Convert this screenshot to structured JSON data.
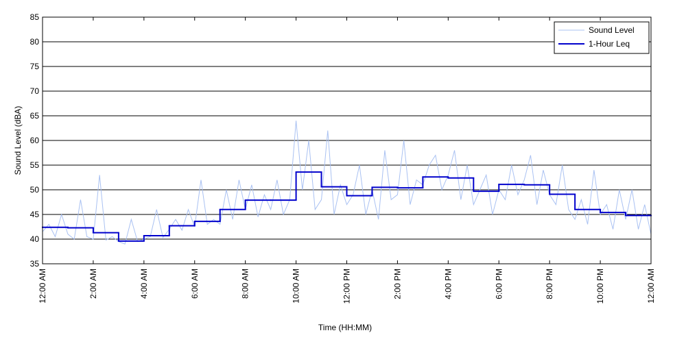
{
  "chart_data": {
    "type": "line",
    "xlabel": "Time (HH:MM)",
    "ylabel": "Sound Level (dBA)",
    "xlim": [
      0,
      24
    ],
    "ylim": [
      35,
      85
    ],
    "yticks": [
      35,
      40,
      45,
      50,
      55,
      60,
      65,
      70,
      75,
      80,
      85
    ],
    "xticks": [
      {
        "value": 0,
        "label": "12:00 AM"
      },
      {
        "value": 2,
        "label": "2:00 AM"
      },
      {
        "value": 4,
        "label": "4:00 AM"
      },
      {
        "value": 6,
        "label": "6:00 AM"
      },
      {
        "value": 8,
        "label": "8:00 AM"
      },
      {
        "value": 10,
        "label": "10:00 AM"
      },
      {
        "value": 12,
        "label": "12:00 PM"
      },
      {
        "value": 14,
        "label": "2:00 PM"
      },
      {
        "value": 16,
        "label": "4:00 PM"
      },
      {
        "value": 18,
        "label": "6:00 PM"
      },
      {
        "value": 20,
        "label": "8:00 PM"
      },
      {
        "value": 22,
        "label": "10:00 PM"
      },
      {
        "value": 24,
        "label": "12:00 AM"
      }
    ],
    "grid": true,
    "legend": "upper right",
    "series": [
      {
        "name": "Sound Level",
        "color": "#a9c1f2",
        "step": false,
        "x": [
          0,
          0.25,
          0.5,
          0.75,
          1,
          1.25,
          1.5,
          1.75,
          2,
          2.25,
          2.5,
          2.75,
          3,
          3.25,
          3.5,
          3.75,
          4,
          4.25,
          4.5,
          4.75,
          5,
          5.25,
          5.5,
          5.75,
          6,
          6.25,
          6.5,
          6.75,
          7,
          7.25,
          7.5,
          7.75,
          8,
          8.25,
          8.5,
          8.75,
          9,
          9.25,
          9.5,
          9.75,
          10,
          10.25,
          10.5,
          10.75,
          11,
          11.25,
          11.5,
          11.75,
          12,
          12.25,
          12.5,
          12.75,
          13,
          13.25,
          13.5,
          13.75,
          14,
          14.25,
          14.5,
          14.75,
          15,
          15.25,
          15.5,
          15.75,
          16,
          16.25,
          16.5,
          16.75,
          17,
          17.25,
          17.5,
          17.75,
          18,
          18.25,
          18.5,
          18.75,
          19,
          19.25,
          19.5,
          19.75,
          20,
          20.25,
          20.5,
          20.75,
          21,
          21.25,
          21.5,
          21.75,
          22,
          22.25,
          22.5,
          22.75,
          23,
          23.25,
          23.5,
          23.75,
          24
        ],
        "values": [
          41.5,
          43,
          40.5,
          45,
          41,
          40,
          48,
          40.5,
          40,
          53,
          39.8,
          40.5,
          39.5,
          39,
          44,
          39.5,
          40,
          40.5,
          46,
          40.3,
          42,
          44,
          41.8,
          46,
          42.5,
          52,
          43,
          44,
          43,
          50,
          44,
          52,
          46,
          51,
          44.5,
          49,
          46,
          52,
          45,
          48,
          64,
          50,
          60,
          46,
          48,
          62,
          45,
          51,
          47,
          49,
          55,
          45,
          50,
          44,
          58,
          48,
          49,
          60,
          47,
          52,
          51,
          55,
          57,
          50,
          53,
          58,
          48,
          55,
          47,
          50,
          53,
          45,
          50,
          48,
          55,
          49,
          52,
          57,
          47,
          54,
          49,
          47,
          55,
          46,
          44,
          48,
          43,
          54,
          45,
          47,
          42,
          50,
          44,
          50,
          42,
          47,
          41
        ]
      },
      {
        "name": "1-Hour Leq",
        "color": "#0000cc",
        "step": true,
        "x": [
          0,
          1,
          2,
          3,
          4,
          5,
          6,
          7,
          8,
          9,
          10,
          11,
          12,
          13,
          14,
          15,
          16,
          17,
          18,
          19,
          20,
          21,
          22,
          23
        ],
        "values": [
          42.4,
          42.3,
          41.3,
          39.6,
          40.7,
          42.7,
          43.6,
          46.0,
          47.9,
          47.9,
          53.6,
          50.6,
          48.8,
          50.5,
          50.4,
          52.6,
          52.4,
          49.7,
          51.1,
          51.0,
          49.1,
          46.0,
          45.4,
          44.8
        ]
      }
    ]
  }
}
